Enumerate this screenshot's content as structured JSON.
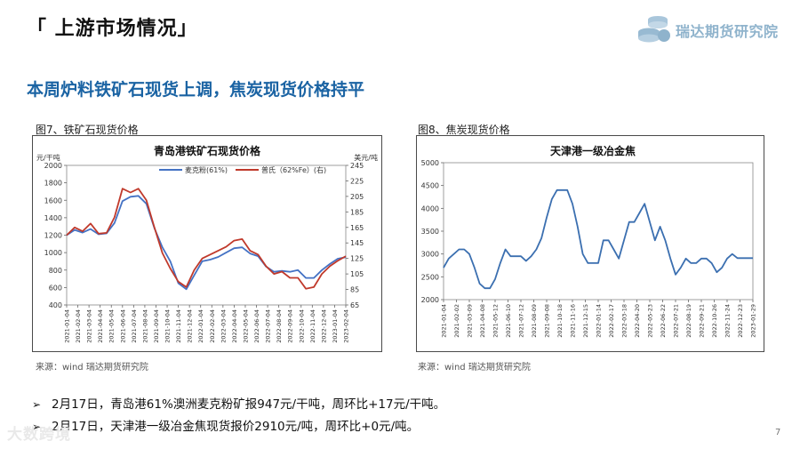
{
  "slide": {
    "section_title": "「 上游市场情况」",
    "logo_text": "瑞达期货研究院",
    "headline": "本周炉料铁矿石现货上调，焦炭现货价格持平",
    "page_number": "7",
    "watermark": "大数跨境",
    "colors": {
      "headline": "#1a63a3",
      "logo": "#8fb3cc"
    }
  },
  "figures": [
    {
      "label": "图7、铁矿石现货价格",
      "source": "来源：wind   瑞达期货研究院"
    },
    {
      "label": "图8、焦炭现货价格",
      "source": "来源：wind   瑞达期货研究院"
    }
  ],
  "bullets": [
    {
      "arrow": "➢",
      "text": "2月17日，青岛港61%澳洲麦克粉矿报947元/干吨，周环比+17元/干吨。"
    },
    {
      "arrow": "➢",
      "text": "2月17日，天津港一级冶金焦现货报价2910元/吨，周环比+0元/吨。"
    }
  ],
  "chart_data": [
    {
      "type": "line",
      "title": "青岛港铁矿石现货价格",
      "ylabel_left": "元/干吨",
      "ylabel_right": "美元/吨",
      "ylim": [
        400,
        2000
      ],
      "y_ticks": [
        400,
        600,
        800,
        1000,
        1200,
        1400,
        1600,
        1800,
        2000
      ],
      "ylim_right": [
        65,
        245
      ],
      "y_ticks_right": [
        65,
        85,
        105,
        125,
        145,
        165,
        185,
        205,
        225,
        245
      ],
      "x_ticks": [
        "2021-01-04",
        "2021-02-04",
        "2021-03-04",
        "2021-04-04",
        "2021-05-04",
        "2021-06-04",
        "2021-07-04",
        "2021-08-04",
        "2021-09-04",
        "2021-10-04",
        "2021-11-04",
        "2021-12-04",
        "2022-01-04",
        "2022-02-04",
        "2022-03-04",
        "2022-04-04",
        "2022-05-04",
        "2022-06-04",
        "2022-07-04",
        "2022-08-04",
        "2022-09-04",
        "2022-10-04",
        "2022-11-04",
        "2022-12-04",
        "2023-01-04",
        "2023-02-04"
      ],
      "grid": false,
      "legend": "top",
      "series": [
        {
          "name": "麦克粉(61%)",
          "axis": "left",
          "color": "#4472c4",
          "values": [
            1200,
            1260,
            1230,
            1270,
            1210,
            1220,
            1340,
            1590,
            1640,
            1650,
            1560,
            1280,
            1060,
            900,
            650,
            580,
            740,
            900,
            920,
            950,
            1000,
            1050,
            1060,
            990,
            960,
            840,
            780,
            790,
            780,
            800,
            710,
            710,
            800,
            870,
            930,
            947
          ]
        },
        {
          "name": "普氏（62%Fe）(右)",
          "axis": "right",
          "color": "#c0392b",
          "values": [
            155,
            165,
            160,
            170,
            157,
            158,
            178,
            215,
            210,
            215,
            200,
            165,
            132,
            112,
            95,
            88,
            110,
            125,
            130,
            135,
            140,
            148,
            150,
            135,
            130,
            115,
            105,
            108,
            100,
            100,
            86,
            88,
            105,
            115,
            122,
            128
          ]
        }
      ]
    },
    {
      "type": "line",
      "title": "天津港一级冶金焦",
      "ylim": [
        2000,
        5000
      ],
      "y_ticks": [
        2000,
        2500,
        3000,
        3500,
        4000,
        4500,
        5000
      ],
      "x_ticks": [
        "2021-01-04",
        "2021-02-02",
        "2021-03-09",
        "2021-04-08",
        "2021-05-12",
        "2021-06-10",
        "2021-07-12",
        "2021-08-09",
        "2021-09-08",
        "2021-10-18",
        "2021-11-16",
        "2021-12-15",
        "2022-01-14",
        "2022-02-17",
        "2022-03-18",
        "2022-04-20",
        "2022-05-23",
        "2022-06-22",
        "2022-07-21",
        "2022-08-19",
        "2022-09-21",
        "2022-10-26",
        "2022-11-24",
        "2022-12-23",
        "2023-01-29"
      ],
      "grid": false,
      "series": [
        {
          "name": "",
          "color": "#3b6fb0",
          "values": [
            2700,
            2900,
            3000,
            3100,
            3100,
            3000,
            2700,
            2350,
            2250,
            2250,
            2450,
            2800,
            3100,
            2950,
            2950,
            2950,
            2850,
            2950,
            3100,
            3350,
            3800,
            4200,
            4400,
            4400,
            4400,
            4100,
            3600,
            3000,
            2800,
            2800,
            2800,
            3300,
            3300,
            3100,
            2900,
            3300,
            3700,
            3700,
            3900,
            4100,
            3700,
            3300,
            3600,
            3300,
            2900,
            2550,
            2700,
            2900,
            2800,
            2800,
            2900,
            2900,
            2800,
            2600,
            2700,
            2900,
            3000,
            2910,
            2910,
            2910,
            2910
          ]
        }
      ]
    }
  ]
}
